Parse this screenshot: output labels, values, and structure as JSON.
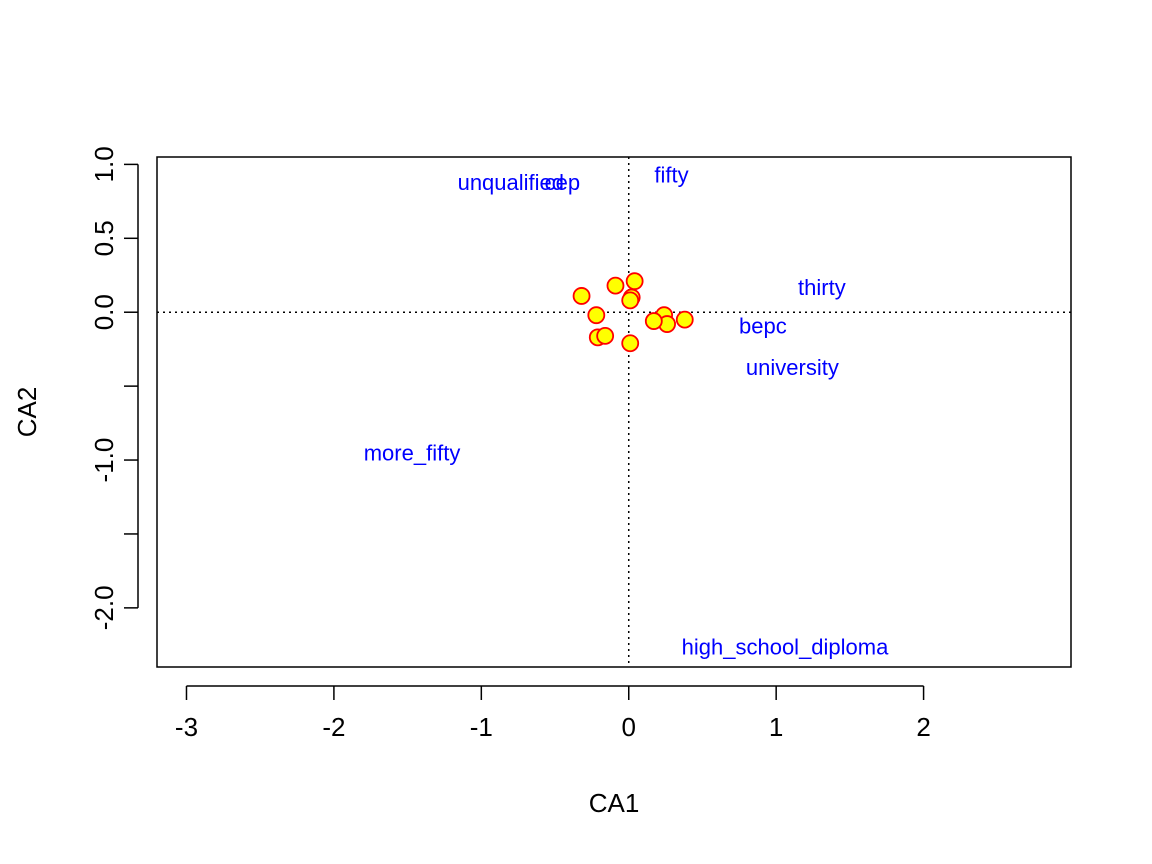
{
  "chart_data": {
    "type": "scatter",
    "title": "",
    "xlabel": "CA1",
    "ylabel": "CA2",
    "xlim": [
      -3.2,
      3.0
    ],
    "ylim": [
      -2.4,
      1.05
    ],
    "x_ticks": [
      -3,
      -2,
      -1,
      0,
      1,
      2
    ],
    "x_tick_labels": [
      "-3",
      "-2",
      "-1",
      "0",
      "1",
      "2"
    ],
    "y_ticks": [
      1.0,
      0.5,
      0.0,
      -0.5,
      -1.0,
      -1.5,
      -2.0
    ],
    "y_tick_labels": [
      "1.0",
      "0.5",
      "0.0",
      "",
      "-1.0",
      "",
      "-2.0"
    ],
    "reference_lines": {
      "x": 0,
      "y": 0,
      "style": "dotted"
    },
    "grid": false,
    "colors": {
      "point_fill": "#FFFF00",
      "point_stroke": "#FF0000",
      "label": "#0000FF",
      "axis": "#000000"
    },
    "row_points": [
      {
        "x": -0.32,
        "y": 0.11
      },
      {
        "x": -0.09,
        "y": 0.18
      },
      {
        "x": 0.04,
        "y": 0.21
      },
      {
        "x": 0.02,
        "y": 0.1
      },
      {
        "x": 0.01,
        "y": 0.08
      },
      {
        "x": -0.22,
        "y": -0.02
      },
      {
        "x": 0.24,
        "y": -0.02
      },
      {
        "x": 0.26,
        "y": -0.08
      },
      {
        "x": 0.17,
        "y": -0.06
      },
      {
        "x": 0.38,
        "y": -0.05
      },
      {
        "x": -0.21,
        "y": -0.17
      },
      {
        "x": -0.16,
        "y": -0.16
      },
      {
        "x": 0.01,
        "y": -0.21
      }
    ],
    "column_labels": [
      {
        "text": "unqualified",
        "x": -0.8,
        "y": 0.88
      },
      {
        "text": "cep",
        "x": -0.45,
        "y": 0.88
      },
      {
        "text": "fifty",
        "x": 0.29,
        "y": 0.93
      },
      {
        "text": "thirty",
        "x": 1.31,
        "y": 0.17
      },
      {
        "text": "bepc",
        "x": 0.91,
        "y": -0.09
      },
      {
        "text": "university",
        "x": 1.11,
        "y": -0.37
      },
      {
        "text": "more_fifty",
        "x": -1.47,
        "y": -0.95
      },
      {
        "text": "high_school_diploma",
        "x": 1.06,
        "y": -2.26
      }
    ]
  }
}
